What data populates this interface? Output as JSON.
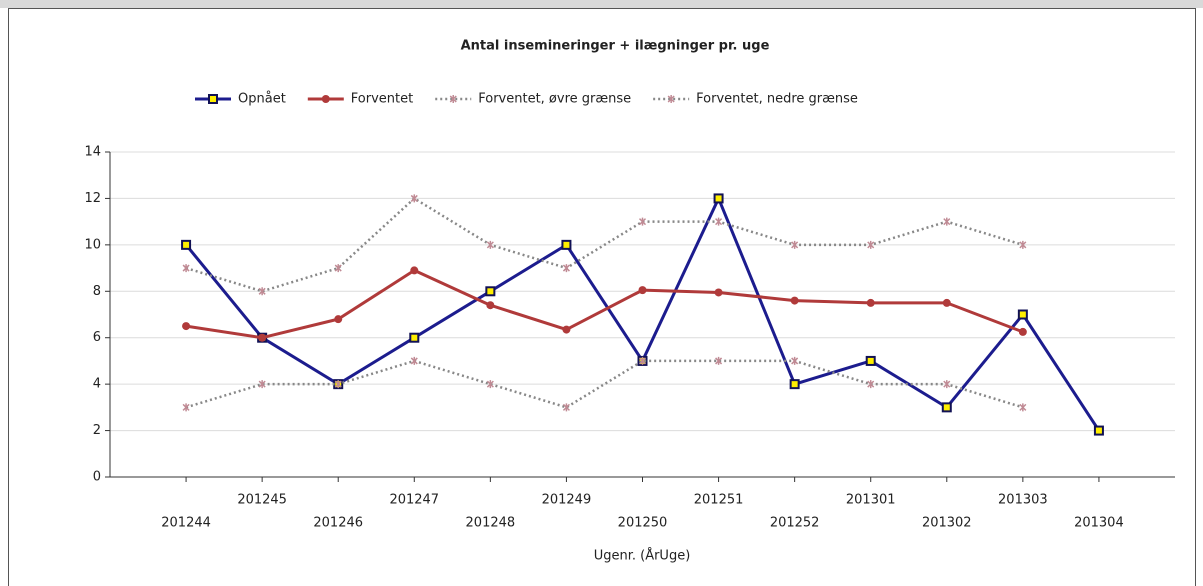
{
  "chart_data": {
    "type": "line",
    "title": "Antal insemineringer + ilægninger pr. uge",
    "xlabel": "Ugenr. (ÅrUge)",
    "categories": [
      "201244",
      "201245",
      "201246",
      "201247",
      "201248",
      "201249",
      "201250",
      "201251",
      "201252",
      "201301",
      "201302",
      "201303",
      "201304"
    ],
    "series": [
      {
        "name": "Opnået",
        "color": "#1c1c8e",
        "style": "solid",
        "marker": "square",
        "values": [
          10,
          6,
          4,
          6,
          8,
          10,
          5,
          12,
          4,
          5,
          3,
          7,
          2
        ]
      },
      {
        "name": "Forventet",
        "color": "#b03a3a",
        "style": "solid",
        "marker": "circle",
        "values": [
          6.5,
          6.0,
          6.8,
          8.9,
          7.4,
          6.35,
          8.05,
          7.95,
          7.6,
          7.5,
          7.5,
          6.25,
          null
        ]
      },
      {
        "name": "Forventet, øvre grænse",
        "color": "#888888",
        "style": "dotted",
        "marker": "star",
        "values": [
          9,
          8,
          9,
          12,
          10,
          9,
          11,
          11,
          10,
          10,
          11,
          10,
          null
        ]
      },
      {
        "name": "Forventet, nedre grænse",
        "color": "#888888",
        "style": "dotted",
        "marker": "star",
        "values": [
          3,
          4,
          4,
          5,
          4,
          3,
          5,
          5,
          5,
          4,
          4,
          3,
          null
        ]
      }
    ],
    "ylim": [
      0,
      14
    ],
    "yticks": [
      0,
      2,
      4,
      6,
      8,
      10,
      12,
      14
    ],
    "grid": true,
    "legend": "top"
  }
}
